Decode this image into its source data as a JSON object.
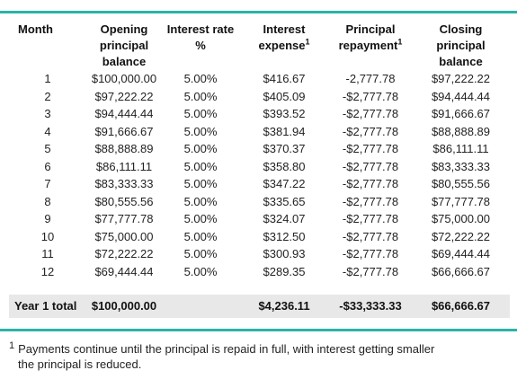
{
  "headers": {
    "month": "Month",
    "opening": [
      "Opening",
      "principal",
      "balance"
    ],
    "rate": [
      "Interest rate",
      "%"
    ],
    "interest": [
      "Interest",
      "expense"
    ],
    "interest_sup": "1",
    "principal": [
      "Principal",
      "repayment"
    ],
    "principal_sup": "1",
    "closing": [
      "Closing",
      "principal",
      "balance"
    ]
  },
  "rows": [
    {
      "month": "1",
      "opening": "$100,000.00",
      "rate": "5.00%",
      "interest": "$416.67",
      "principal": "-2,777.78",
      "closing": "$97,222.22"
    },
    {
      "month": "2",
      "opening": "$97,222.22",
      "rate": "5.00%",
      "interest": "$405.09",
      "principal": "-$2,777.78",
      "closing": "$94,444.44"
    },
    {
      "month": "3",
      "opening": "$94,444.44",
      "rate": "5.00%",
      "interest": "$393.52",
      "principal": "-$2,777.78",
      "closing": "$91,666.67"
    },
    {
      "month": "4",
      "opening": "$91,666.67",
      "rate": "5.00%",
      "interest": "$381.94",
      "principal": "-$2,777.78",
      "closing": "$88,888.89"
    },
    {
      "month": "5",
      "opening": "$88,888.89",
      "rate": "5.00%",
      "interest": "$370.37",
      "principal": "-$2,777.78",
      "closing": "$86,111.11"
    },
    {
      "month": "6",
      "opening": "$86,111.11",
      "rate": "5.00%",
      "interest": "$358.80",
      "principal": "-$2,777.78",
      "closing": "$83,333.33"
    },
    {
      "month": "7",
      "opening": "$83,333.33",
      "rate": "5.00%",
      "interest": "$347.22",
      "principal": "-$2,777.78",
      "closing": "$80,555.56"
    },
    {
      "month": "8",
      "opening": "$80,555.56",
      "rate": "5.00%",
      "interest": "$335.65",
      "principal": "-$2,777.78",
      "closing": "$77,777.78"
    },
    {
      "month": "9",
      "opening": "$77,777.78",
      "rate": "5.00%",
      "interest": "$324.07",
      "principal": "-$2,777.78",
      "closing": "$75,000.00"
    },
    {
      "month": "10",
      "opening": "$75,000.00",
      "rate": "5.00%",
      "interest": "$312.50",
      "principal": "-$2,777.78",
      "closing": "$72,222.22"
    },
    {
      "month": "11",
      "opening": "$72,222.22",
      "rate": "5.00%",
      "interest": "$300.93",
      "principal": "-$2,777.78",
      "closing": "$69,444.44"
    },
    {
      "month": "12",
      "opening": "$69,444.44",
      "rate": "5.00%",
      "interest": "$289.35",
      "principal": "-$2,777.78",
      "closing": "$66,666.67"
    }
  ],
  "total": {
    "label": "Year 1 total",
    "opening": "$100,000.00",
    "rate": "",
    "interest": "$4,236.11",
    "principal": "-$33,333.33",
    "closing": "$66,666.67"
  },
  "footnote": {
    "marker": "1",
    "line1": "Payments continue until the principal is repaid in full, with interest getting smaller",
    "line2": "the principal is reduced."
  },
  "colors": {
    "accent_rule": "#2bb3a7",
    "total_background": "#e8e8e8"
  }
}
